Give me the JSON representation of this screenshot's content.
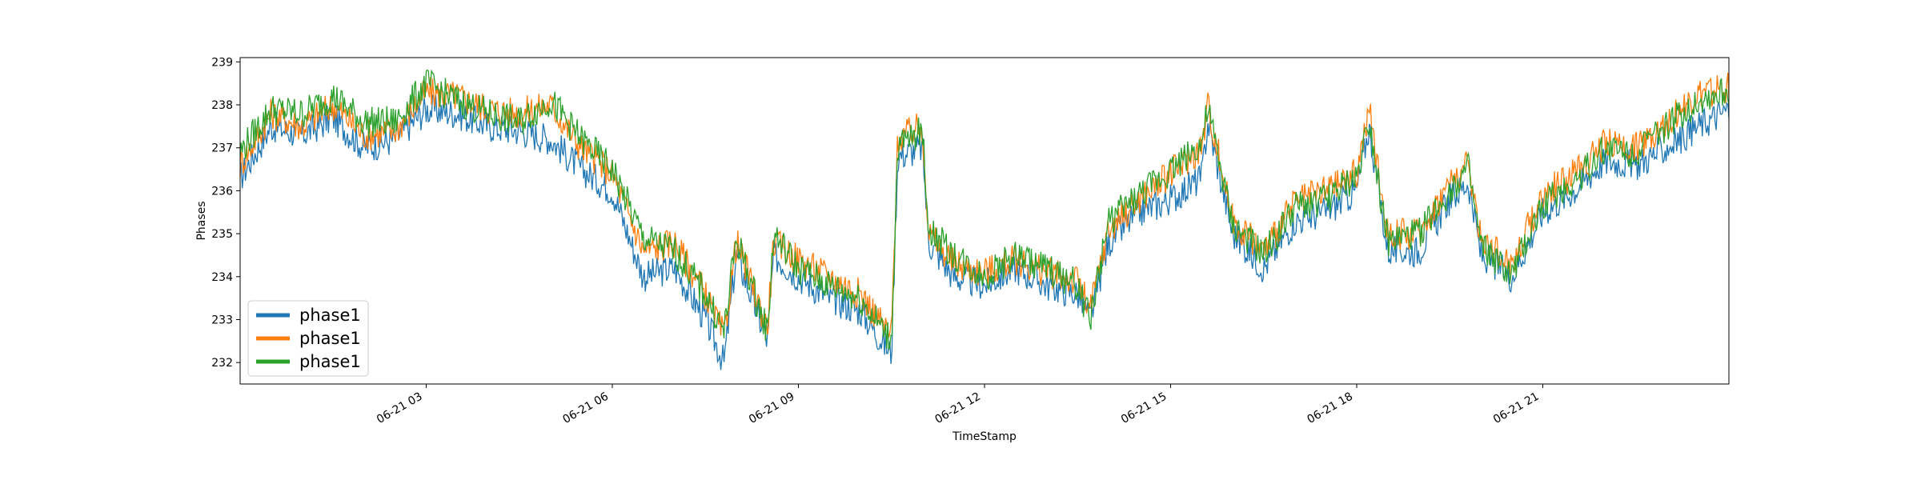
{
  "chart_data": {
    "type": "line",
    "xlabel": "TimeStamp",
    "ylabel": "Phases",
    "x_tick_labels": [
      "06-21 03",
      "06-21 06",
      "06-21 09",
      "06-21 12",
      "06-21 15",
      "06-21 18",
      "06-21 21"
    ],
    "x_tick_hours": [
      3,
      6,
      9,
      12,
      15,
      18,
      21
    ],
    "xlim_hours": [
      0,
      24
    ],
    "y_ticks": [
      232,
      233,
      234,
      235,
      236,
      237,
      238,
      239
    ],
    "ylim": [
      231.5,
      239.1
    ],
    "grid": false,
    "legend_position": "lower-left",
    "x_hours": [
      0,
      0.5,
      1,
      1.5,
      2,
      2.5,
      3,
      3.5,
      4,
      4.5,
      5,
      5.5,
      6,
      6.5,
      7,
      7.5,
      7.8,
      8,
      8.5,
      8.6,
      9,
      9.5,
      10,
      10.5,
      10.6,
      11,
      11.1,
      11.5,
      12,
      12.5,
      13,
      13.5,
      13.7,
      14,
      14.5,
      15,
      15.5,
      15.6,
      16,
      16.5,
      17,
      17.5,
      18,
      18.2,
      18.5,
      19,
      19.5,
      19.8,
      20,
      20.5,
      21,
      21.5,
      22,
      22.5,
      23,
      23.5,
      24
    ],
    "series": [
      {
        "name": "phase1",
        "color": "#1f77b4",
        "values": [
          236.3,
          237.5,
          237.3,
          237.7,
          237.0,
          237.2,
          237.9,
          237.8,
          237.5,
          237.4,
          237.2,
          236.5,
          236.0,
          234.0,
          234.2,
          233.0,
          232.0,
          234.5,
          232.5,
          234.5,
          234.0,
          233.5,
          233.2,
          232.2,
          236.8,
          237.0,
          234.8,
          234.0,
          233.8,
          234.2,
          233.8,
          233.6,
          233.0,
          234.8,
          235.5,
          235.8,
          236.3,
          237.6,
          235.0,
          234.2,
          235.3,
          235.5,
          236.0,
          237.5,
          234.6,
          234.6,
          235.8,
          236.2,
          234.5,
          234.0,
          235.5,
          236.0,
          236.7,
          236.6,
          237.0,
          237.5,
          237.9
        ]
      },
      {
        "name": "phase1",
        "color": "#ff7f0e",
        "values": [
          236.6,
          237.8,
          237.5,
          238.0,
          237.3,
          237.4,
          238.3,
          238.2,
          237.9,
          237.8,
          238.0,
          237.0,
          236.4,
          234.6,
          234.8,
          233.6,
          232.6,
          234.8,
          232.8,
          234.8,
          234.4,
          234.0,
          233.6,
          232.6,
          237.2,
          237.5,
          235.0,
          234.3,
          234.1,
          234.4,
          234.1,
          233.9,
          233.2,
          235.1,
          235.8,
          236.4,
          237.0,
          238.0,
          235.3,
          234.6,
          235.7,
          236.0,
          236.4,
          237.9,
          235.0,
          235.0,
          236.2,
          236.6,
          234.9,
          234.3,
          235.9,
          236.4,
          237.1,
          237.0,
          237.6,
          238.2,
          238.4
        ]
      },
      {
        "name": "phase1",
        "color": "#2ca02c",
        "values": [
          236.9,
          237.9,
          237.8,
          238.2,
          237.6,
          237.6,
          238.5,
          238.1,
          237.8,
          237.6,
          238.1,
          237.2,
          236.5,
          234.9,
          234.6,
          233.6,
          232.7,
          234.9,
          232.7,
          235.0,
          234.2,
          233.8,
          233.5,
          232.5,
          237.0,
          237.4,
          235.1,
          234.5,
          234.0,
          234.5,
          234.2,
          233.8,
          233.0,
          235.3,
          235.9,
          236.5,
          237.1,
          237.9,
          235.2,
          234.5,
          235.6,
          235.8,
          236.3,
          237.7,
          234.8,
          235.0,
          236.0,
          236.5,
          234.7,
          234.0,
          235.7,
          236.2,
          237.0,
          236.9,
          237.5,
          238.1,
          238.3
        ]
      }
    ]
  }
}
